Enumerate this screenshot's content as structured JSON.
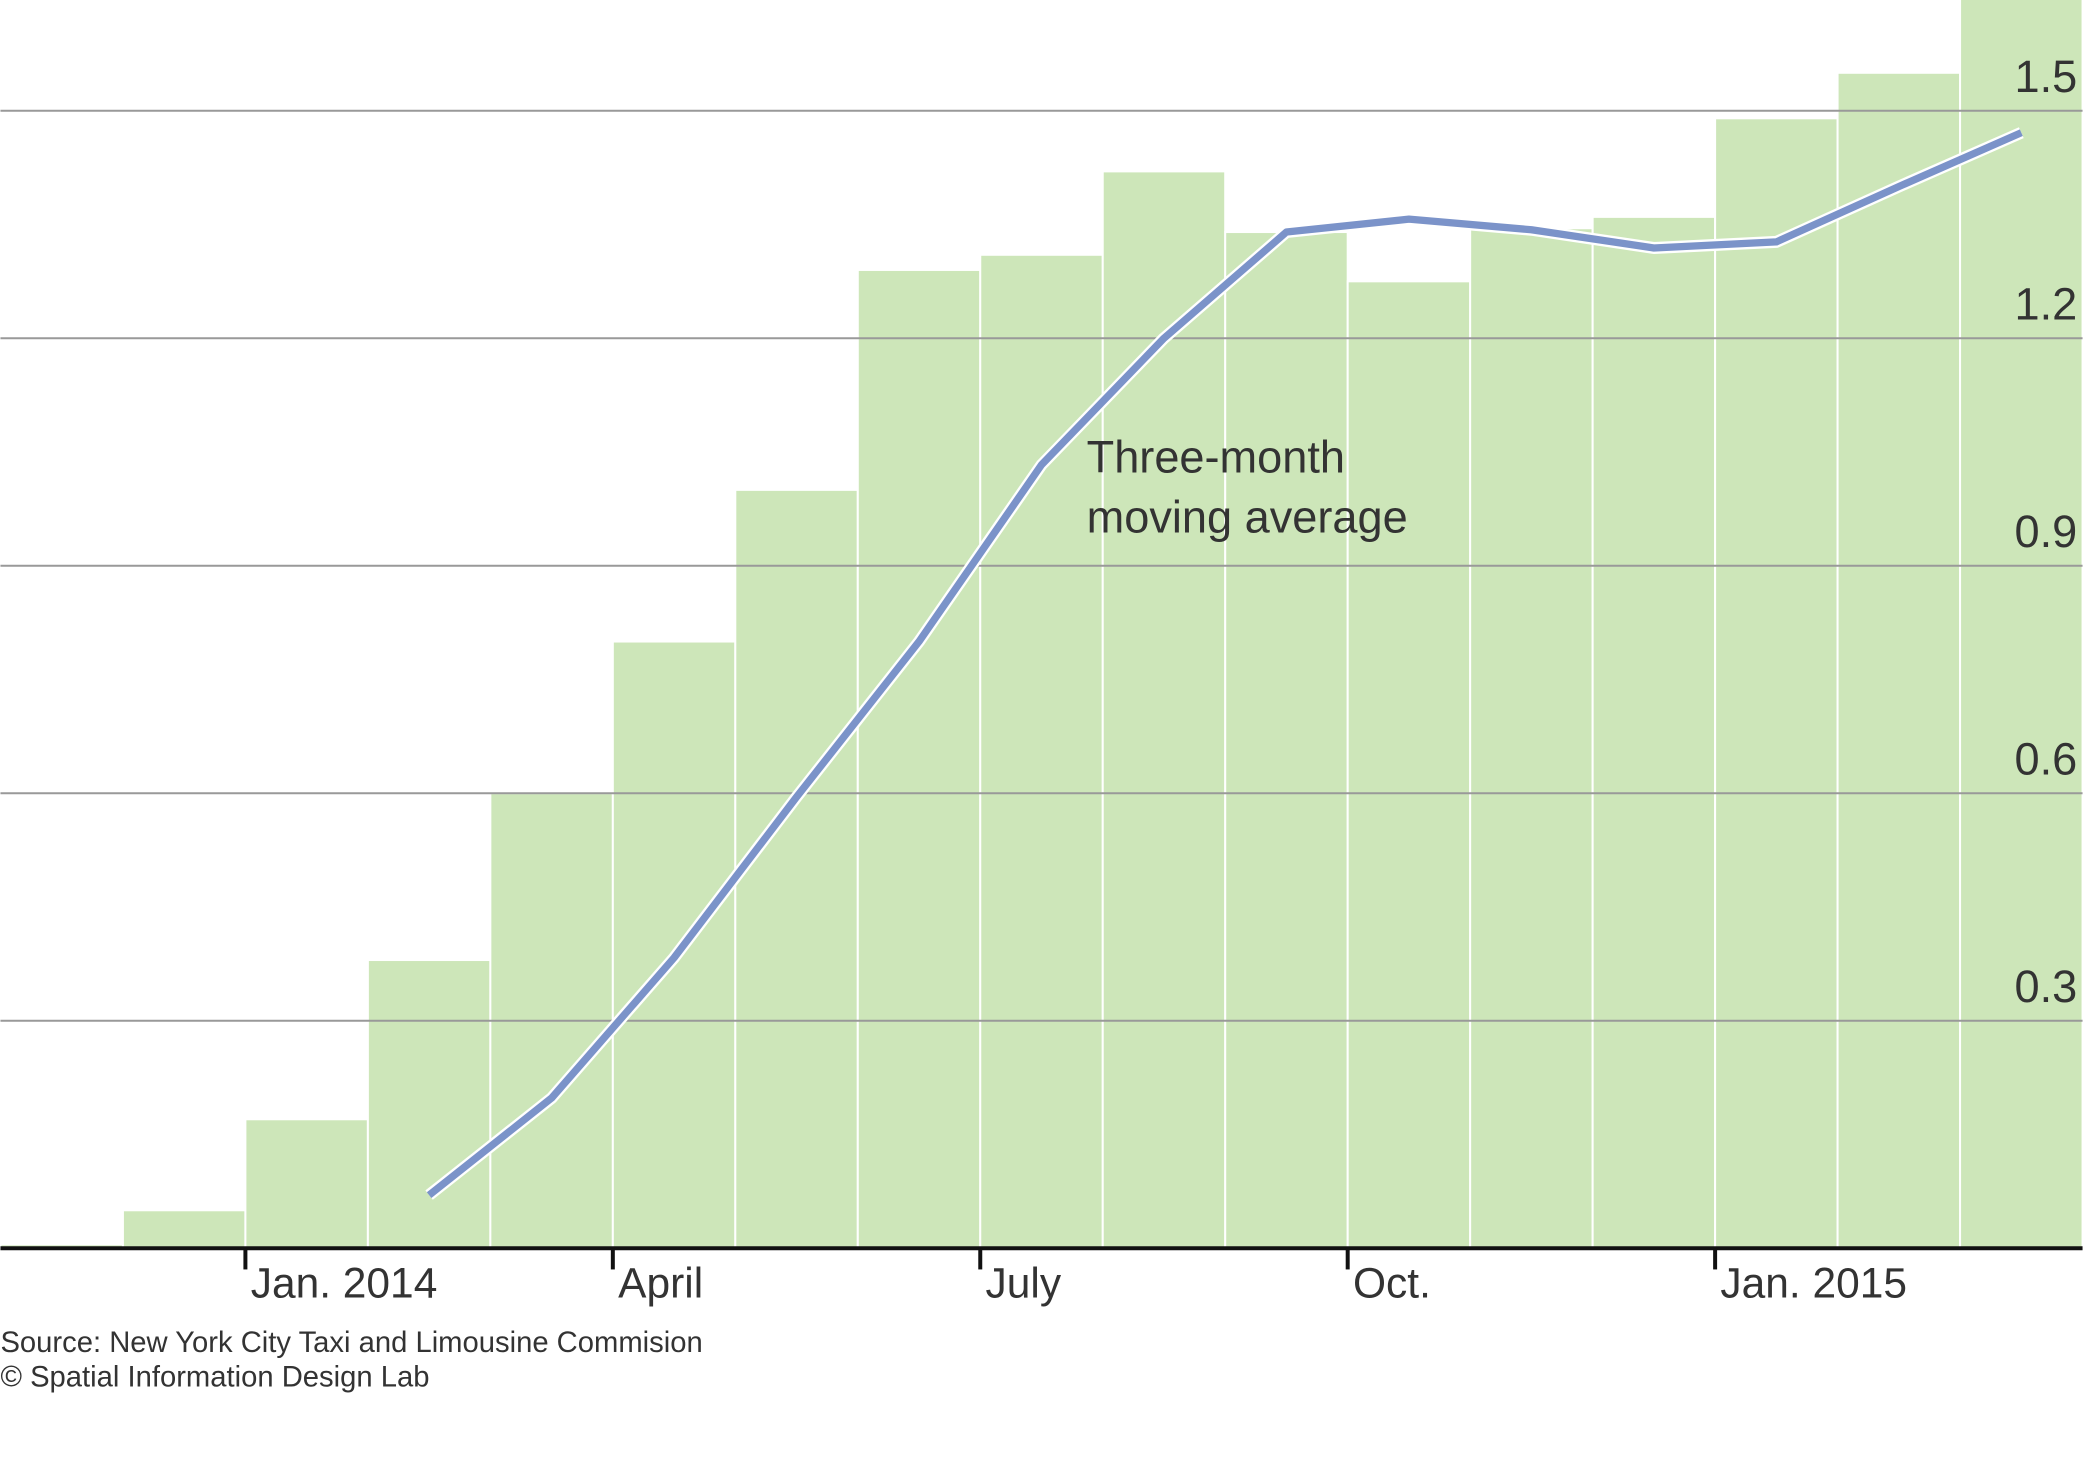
{
  "chart_data": {
    "type": "bar",
    "categories": [
      null,
      null,
      "Jan. 2014",
      null,
      null,
      "April",
      null,
      null,
      "July",
      null,
      null,
      "Oct.",
      null,
      null,
      "Jan. 2015",
      null,
      null
    ],
    "series": [
      {
        "type": "bar",
        "color": "#cde6b9",
        "values": [
          0.005,
          0.05,
          0.17,
          0.38,
          0.6,
          0.8,
          1.0,
          1.29,
          1.31,
          1.42,
          1.34,
          1.275,
          1.345,
          1.36,
          1.49,
          1.55,
          1.65
        ]
      },
      {
        "type": "line",
        "color": "#7b93c9",
        "values": [
          null,
          null,
          null,
          0.07,
          0.198,
          0.383,
          0.595,
          0.8,
          1.033,
          1.2,
          1.34,
          1.357,
          1.343,
          1.319,
          1.327,
          1.4,
          1.471
        ]
      }
    ],
    "annotation": [
      "Three-month",
      "moving average"
    ],
    "ylim": [
      0,
      1.646
    ],
    "yticks": [
      0.3,
      0.6,
      0.9,
      1.2,
      1.5
    ],
    "grid": true,
    "source": [
      "Source: New York City Taxi and Limousine Commision",
      "© Spatial Information Design Lab"
    ]
  }
}
